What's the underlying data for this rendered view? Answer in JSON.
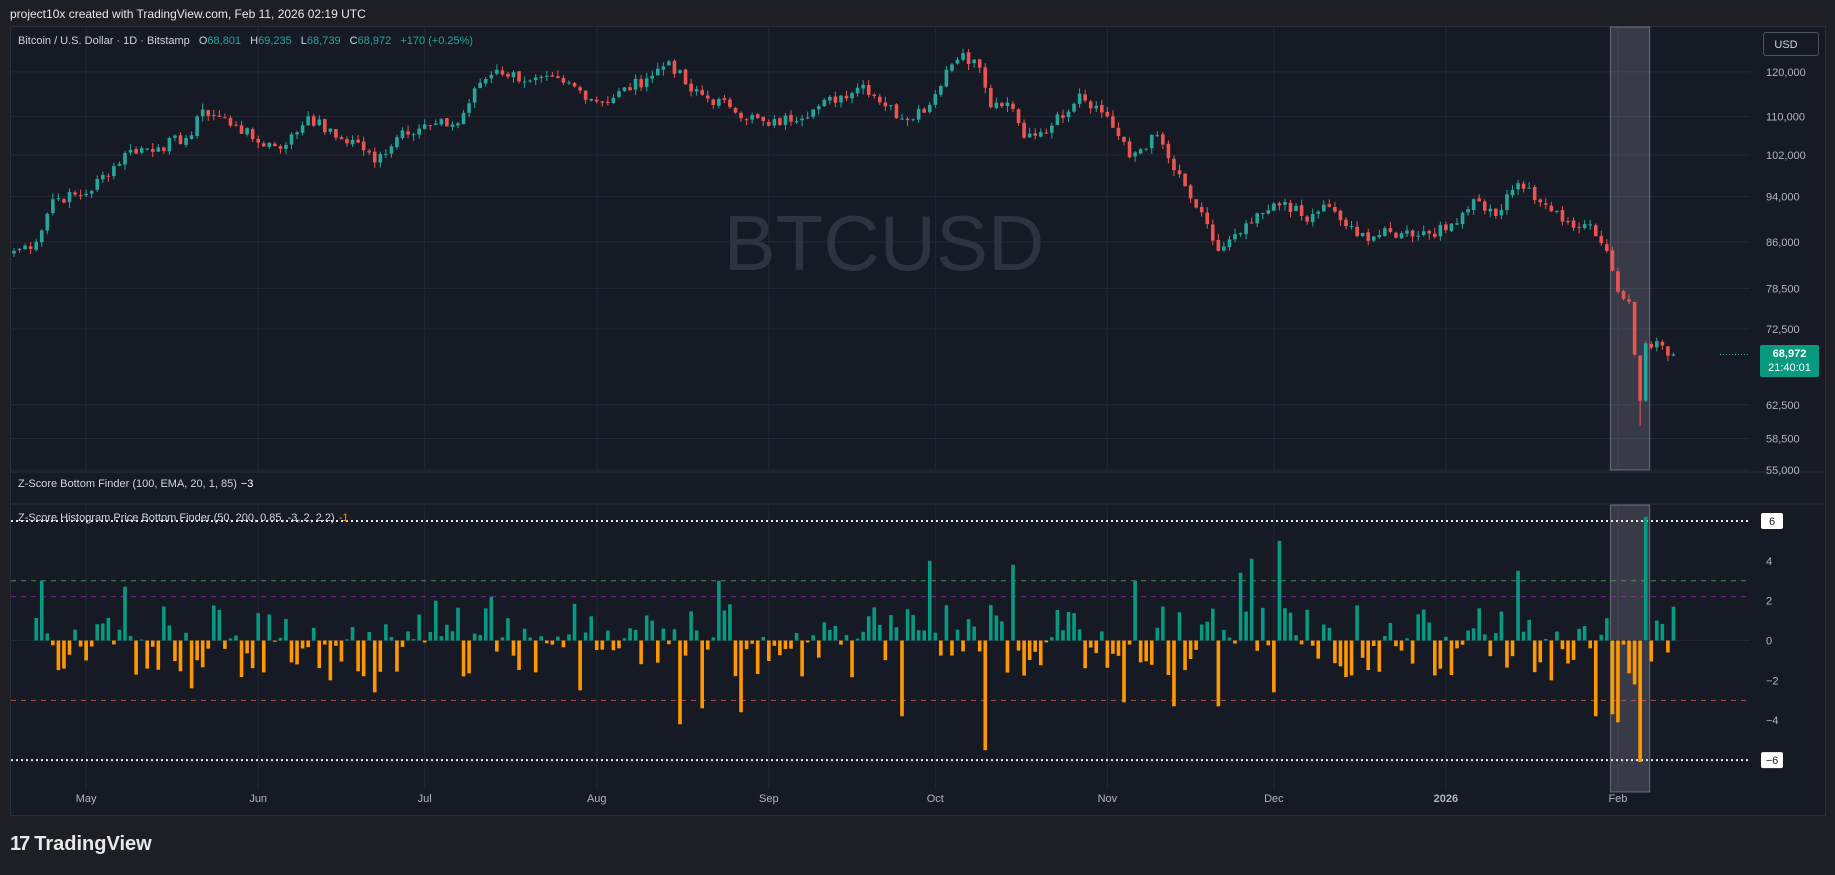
{
  "header": {
    "created_by": "project10x created with TradingView.com, Feb 11, 2026 02:19 UTC"
  },
  "symbol": {
    "title": "Bitcoin / U.S. Dollar · 1D · Bitstamp",
    "open_label": "O",
    "open": "68,801",
    "high_label": "H",
    "high": "69,235",
    "low_label": "L",
    "low": "68,739",
    "close_label": "C",
    "close": "68,972",
    "change": "+170 (+0.25%)",
    "watermark": "BTCUSD"
  },
  "currency_button": "USD",
  "last_price": {
    "price": "68,972",
    "countdown": "21:40:01"
  },
  "indicator1": {
    "name": "Z-Score Bottom Finder (100, EMA, 20, 1, 85)",
    "value": "−3"
  },
  "indicator2": {
    "name": "Z-Score Histogram Price Bottom Finder (50, 200, 0.85, -3, 2, 2.2)",
    "value": "-1"
  },
  "footer": {
    "brand": "TradingView"
  },
  "colors": {
    "up": "#26a69a",
    "down": "#ef5350",
    "hist_up": "#089981",
    "hist_down": "#ff9800",
    "bg": "#161a25",
    "grid": "#232834",
    "highlight": "#787b86",
    "green_line": "#4caf50",
    "purple_line": "#9c27b0",
    "red_line": "#ef5350"
  },
  "chart_data": [
    {
      "type": "candlestick",
      "title": "Bitcoin / U.S. Dollar · 1D · Bitstamp",
      "x_labels": [
        "May",
        "Jun",
        "Jul",
        "Aug",
        "Sep",
        "Oct",
        "Nov",
        "Dec",
        "2026",
        "Feb"
      ],
      "y_ticks": [
        55000,
        58500,
        62500,
        72500,
        78500,
        86000,
        94000,
        102000,
        110000,
        120000
      ],
      "y_tick_labels": [
        "55,000",
        "58,500",
        "62,500",
        "72,500",
        "78,500",
        "86,000",
        "94,000",
        "102,000",
        "110,000",
        "120,000"
      ],
      "ylim": [
        55000,
        128000
      ],
      "scale": "log",
      "start_date": "2025-04-18",
      "end_date": "2026-02-11",
      "close_anchors": [
        [
          "2025-04-18",
          84500
        ],
        [
          "2025-04-22",
          86000
        ],
        [
          "2025-04-25",
          93500
        ],
        [
          "2025-05-01",
          94500
        ],
        [
          "2025-05-09",
          103000
        ],
        [
          "2025-05-14",
          103500
        ],
        [
          "2025-05-20",
          106000
        ],
        [
          "2025-05-22",
          111500
        ],
        [
          "2025-05-28",
          108000
        ],
        [
          "2025-06-01",
          104500
        ],
        [
          "2025-06-06",
          104000
        ],
        [
          "2025-06-10",
          110000
        ],
        [
          "2025-06-15",
          105500
        ],
        [
          "2025-06-19",
          104500
        ],
        [
          "2025-06-22",
          100500
        ],
        [
          "2025-06-27",
          107000
        ],
        [
          "2025-07-02",
          108000
        ],
        [
          "2025-07-07",
          108500
        ],
        [
          "2025-07-11",
          117500
        ],
        [
          "2025-07-14",
          120500
        ],
        [
          "2025-07-20",
          118000
        ],
        [
          "2025-07-26",
          117500
        ],
        [
          "2025-08-02",
          113000
        ],
        [
          "2025-08-10",
          118500
        ],
        [
          "2025-08-14",
          122500
        ],
        [
          "2025-08-18",
          115500
        ],
        [
          "2025-08-25",
          112000
        ],
        [
          "2025-09-01",
          108000
        ],
        [
          "2025-09-09",
          111500
        ],
        [
          "2025-09-18",
          117000
        ],
        [
          "2025-09-25",
          109500
        ],
        [
          "2025-09-30",
          112500
        ],
        [
          "2025-10-03",
          120500
        ],
        [
          "2025-10-06",
          124500
        ],
        [
          "2025-10-09",
          121000
        ],
        [
          "2025-10-11",
          112000
        ],
        [
          "2025-10-14",
          113000
        ],
        [
          "2025-10-17",
          105500
        ],
        [
          "2025-10-22",
          108000
        ],
        [
          "2025-10-27",
          115000
        ],
        [
          "2025-11-01",
          110000
        ],
        [
          "2025-11-05",
          101500
        ],
        [
          "2025-11-10",
          106000
        ],
        [
          "2025-11-13",
          99000
        ],
        [
          "2025-11-17",
          92000
        ],
        [
          "2025-11-21",
          84500
        ],
        [
          "2025-11-25",
          87500
        ],
        [
          "2025-11-30",
          91500
        ],
        [
          "2025-12-03",
          93000
        ],
        [
          "2025-12-07",
          89500
        ],
        [
          "2025-12-10",
          92500
        ],
        [
          "2025-12-16",
          87000
        ],
        [
          "2025-12-24",
          87500
        ],
        [
          "2026-01-01",
          88000
        ],
        [
          "2026-01-06",
          93500
        ],
        [
          "2026-01-10",
          90500
        ],
        [
          "2026-01-14",
          96500
        ],
        [
          "2026-01-19",
          92500
        ],
        [
          "2026-01-22",
          89500
        ],
        [
          "2026-01-27",
          89000
        ],
        [
          "2026-01-30",
          84500
        ],
        [
          "2026-02-01",
          78000
        ],
        [
          "2026-02-03",
          76500
        ],
        [
          "2026-02-05",
          63000
        ],
        [
          "2026-02-06",
          70500
        ],
        [
          "2026-02-08",
          70800
        ],
        [
          "2026-02-10",
          68800
        ],
        [
          "2026-02-11",
          68972
        ]
      ],
      "last": {
        "open": 68801,
        "high": 69235,
        "low": 68739,
        "close": 68972
      }
    },
    {
      "type": "histogram",
      "title": "Z-Score Histogram Price Bottom Finder (50, 200, 0.85, -3, 2, 2.2)",
      "y_ticks": [
        -6,
        -4,
        -2,
        0,
        2,
        4,
        6
      ],
      "y_tick_labels": [
        "−6",
        "−4",
        "−2",
        "0",
        "2",
        "4",
        "6"
      ],
      "ylim": [
        -7.5,
        6.8
      ],
      "levels": [
        {
          "value": 6,
          "color": "#ffffff",
          "style": "dotted"
        },
        {
          "value": 3,
          "color": "#4caf50",
          "style": "dashed"
        },
        {
          "value": 2.2,
          "color": "#9c27b0",
          "style": "dashed"
        },
        {
          "value": -3,
          "color": "#ef5350",
          "style": "dashed"
        },
        {
          "value": -6,
          "color": "#ffffff",
          "style": "dotted"
        }
      ],
      "highlight_dates": [
        "2026-01-31",
        "2026-02-06"
      ],
      "spikes": [
        [
          "2025-04-23",
          3.0
        ],
        [
          "2025-05-01",
          -1.0
        ],
        [
          "2025-05-08",
          2.7
        ],
        [
          "2025-05-20",
          -2.4
        ],
        [
          "2025-06-02",
          -1.6
        ],
        [
          "2025-06-14",
          -2.0
        ],
        [
          "2025-06-22",
          -2.6
        ],
        [
          "2025-07-03",
          2.0
        ],
        [
          "2025-07-08",
          -1.8
        ],
        [
          "2025-07-13",
          2.2
        ],
        [
          "2025-07-21",
          -1.6
        ],
        [
          "2025-07-29",
          -2.5
        ],
        [
          "2025-08-16",
          -4.2
        ],
        [
          "2025-08-20",
          -3.4
        ],
        [
          "2025-08-23",
          3.0
        ],
        [
          "2025-08-27",
          -3.6
        ],
        [
          "2025-09-25",
          -3.8
        ],
        [
          "2025-09-30",
          4.0
        ],
        [
          "2025-10-10",
          -5.5
        ],
        [
          "2025-10-15",
          3.8
        ],
        [
          "2025-11-04",
          -3.1
        ],
        [
          "2025-11-06",
          3.0
        ],
        [
          "2025-11-13",
          -3.3
        ],
        [
          "2025-11-21",
          -3.3
        ],
        [
          "2025-11-25",
          3.4
        ],
        [
          "2025-11-27",
          4.1
        ],
        [
          "2025-12-01",
          -2.6
        ],
        [
          "2025-12-02",
          5.0
        ],
        [
          "2026-01-14",
          3.5
        ],
        [
          "2026-01-20",
          -2.0
        ],
        [
          "2026-01-28",
          -3.8
        ],
        [
          "2026-01-31",
          -3.7
        ],
        [
          "2026-02-01",
          -4.1
        ],
        [
          "2026-02-04",
          -2.2
        ],
        [
          "2026-02-05",
          -6.1
        ],
        [
          "2026-02-06",
          6.2
        ],
        [
          "2026-02-08",
          1.0
        ],
        [
          "2026-02-10",
          -0.6
        ]
      ]
    }
  ]
}
